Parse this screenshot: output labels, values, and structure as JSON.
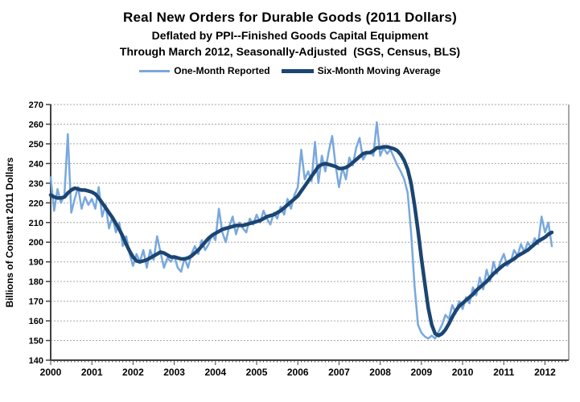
{
  "header": {
    "title": "Real New Orders for Durable Goods (2011 Dollars)",
    "subtitle1": "Deflated by PPI--Finished Goods Capital Equipment",
    "subtitle2": "Through March 2012, Seasonally-Adjusted  (SGS, Census, BLS)"
  },
  "legend": {
    "one_month": "One-Month Reported",
    "six_month": "Six-Month Moving Average"
  },
  "colors": {
    "one_month": "#79A8DC",
    "six_month": "#1B4572",
    "grid": "#A6A6A6",
    "axis": "#404040",
    "border": "#8C8C8C",
    "text": "#000000"
  },
  "chart_data": {
    "type": "line",
    "title": "Real New Orders for Durable Goods (2011 Dollars)",
    "ylabel": "Billions of Constant 2011 Dollars",
    "xlabel": "",
    "ylim": [
      140,
      270
    ],
    "yticks": [
      140,
      150,
      160,
      170,
      180,
      190,
      200,
      210,
      220,
      230,
      240,
      250,
      260,
      270
    ],
    "xticks": [
      "2000",
      "2001",
      "2002",
      "2003",
      "2004",
      "2005",
      "2006",
      "2007",
      "2008",
      "2009",
      "2010",
      "2011",
      "2012"
    ],
    "x_monthly_start": "2000-01",
    "x_monthly_end": "2012-03",
    "grid": "horizontal-dotted",
    "legend_position": "top",
    "series": [
      {
        "name": "One-Month Reported",
        "color": "#79A8DC",
        "width": 2.5,
        "values": [
          233,
          216,
          227,
          220,
          224,
          255,
          215,
          222,
          228,
          217,
          223,
          219,
          222,
          217,
          228,
          213,
          219,
          207,
          213,
          205,
          210,
          198,
          203,
          194,
          188,
          194,
          190,
          196,
          187,
          196,
          191,
          203,
          195,
          187,
          192,
          190,
          193,
          187,
          185,
          192,
          187,
          194,
          198,
          194,
          201,
          196,
          199,
          204,
          201,
          217,
          205,
          200,
          208,
          213,
          204,
          210,
          207,
          205,
          212,
          209,
          214,
          210,
          216,
          212,
          209,
          215,
          212,
          218,
          214,
          222,
          217,
          224,
          228,
          247,
          232,
          236,
          231,
          251,
          230,
          244,
          236,
          246,
          254,
          239,
          228,
          238,
          232,
          243,
          239,
          248,
          253,
          242,
          245,
          246,
          244,
          261,
          244,
          248,
          245,
          247,
          243,
          239,
          236,
          232,
          225,
          205,
          178,
          158,
          154,
          152,
          151,
          152.5,
          151,
          154.5,
          158,
          163,
          161,
          168,
          164,
          170,
          166,
          172,
          169,
          177,
          173,
          182,
          176,
          186,
          180,
          190,
          184,
          190,
          194,
          188,
          190,
          196,
          193,
          199,
          195,
          200,
          197,
          202,
          199,
          213,
          205,
          210,
          198
        ]
      },
      {
        "name": "Six-Month Moving Average",
        "color": "#1B4572",
        "width": 4.5,
        "values": [
          224,
          223,
          222.5,
          222.5,
          223,
          225,
          226.5,
          227.5,
          227,
          226.5,
          226.5,
          226,
          225.5,
          224.5,
          222.5,
          220,
          217.5,
          215,
          212.5,
          209.5,
          206.5,
          203,
          199,
          195.5,
          192.5,
          190.5,
          190,
          190.5,
          191,
          192,
          193,
          194,
          195,
          194.5,
          193.5,
          192.5,
          192.5,
          192,
          191.5,
          191.5,
          192,
          193,
          194.5,
          196,
          198,
          200,
          202,
          203.5,
          204.5,
          205.5,
          206.5,
          207,
          207.5,
          208,
          208.5,
          208.5,
          208.5,
          209,
          209.5,
          210,
          210.5,
          211,
          212,
          213,
          213.5,
          214,
          215,
          216,
          217.5,
          219,
          220.5,
          222,
          223.5,
          226,
          228.5,
          231,
          233.5,
          236,
          238.5,
          239.5,
          240,
          239.5,
          239,
          238.5,
          237.5,
          237.5,
          238,
          239,
          240.5,
          242,
          243.5,
          245,
          245.5,
          245.5,
          246.5,
          248,
          248,
          248.5,
          248.5,
          248,
          247.5,
          246.5,
          244.5,
          241.5,
          237,
          230,
          219,
          206,
          192,
          179,
          166.5,
          158,
          153.5,
          152.5,
          153.5,
          155.5,
          158.5,
          162,
          165,
          167.5,
          169,
          170.5,
          172,
          173.5,
          175.5,
          177,
          178.5,
          180,
          182,
          184,
          185.5,
          187,
          188.5,
          189.5,
          190.5,
          191.5,
          193,
          194,
          195,
          196,
          197.5,
          199,
          200.5,
          201.5,
          202.5,
          204,
          205
        ]
      }
    ]
  }
}
